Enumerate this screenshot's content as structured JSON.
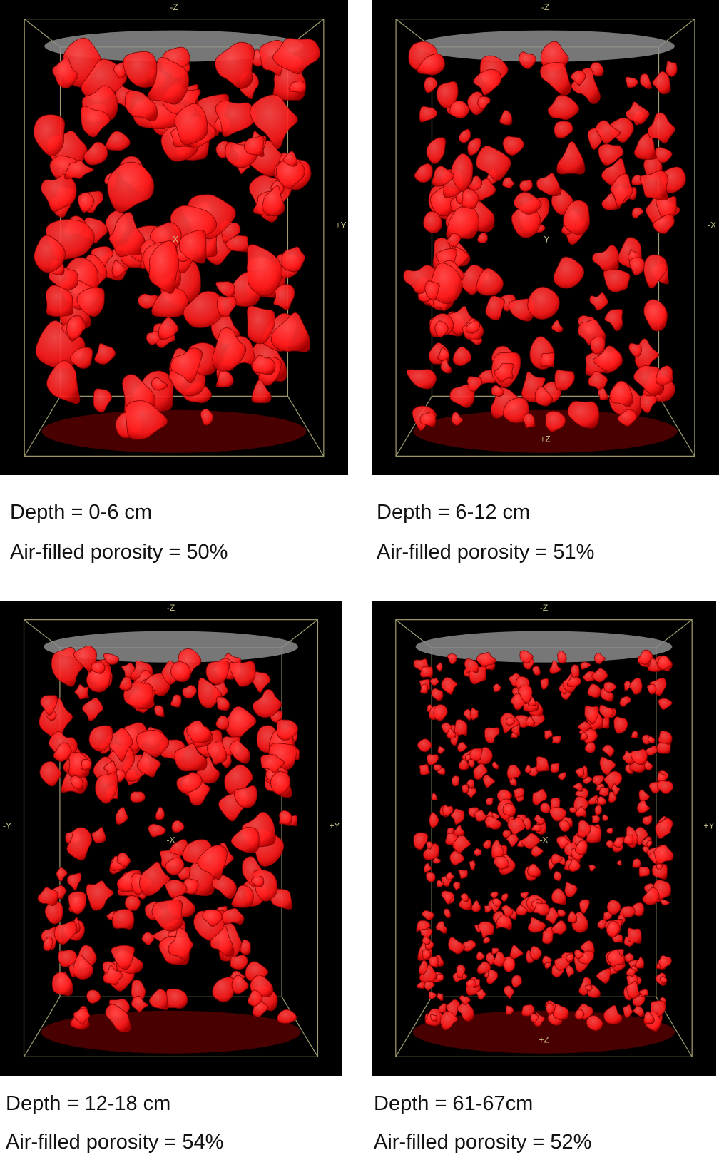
{
  "panels": [
    {
      "depth_label": "Depth = 0-6 cm",
      "porosity_label": "Air-filled porosity = 50%",
      "axis_labels": {
        "top": "-Z",
        "right": "+Y",
        "center": "-X",
        "bottom": ""
      }
    },
    {
      "depth_label": "Depth = 6-12 cm",
      "porosity_label": "Air-filled porosity = 51%",
      "axis_labels": {
        "top": "-Z",
        "right": "-X",
        "center": "-Y",
        "bottom": "+Z"
      }
    },
    {
      "depth_label": "Depth = 12-18 cm",
      "porosity_label": "Air-filled porosity = 54%",
      "axis_labels": {
        "top": "-Z",
        "right": "+Y",
        "center": "-X",
        "left": "-Y",
        "bottom": ""
      }
    },
    {
      "depth_label": "Depth = 61-67cm",
      "porosity_label": "Air-filled porosity = 52%",
      "axis_labels": {
        "top": "-Z",
        "right": "+Y",
        "center": "-X",
        "bottom": "+Z"
      }
    }
  ],
  "colors": {
    "pore_red": "#ff1a1a",
    "pore_dark": "#b00000",
    "background": "#000000",
    "cap_gray": "#8c8c8c",
    "box_line": "#c9c48a"
  }
}
